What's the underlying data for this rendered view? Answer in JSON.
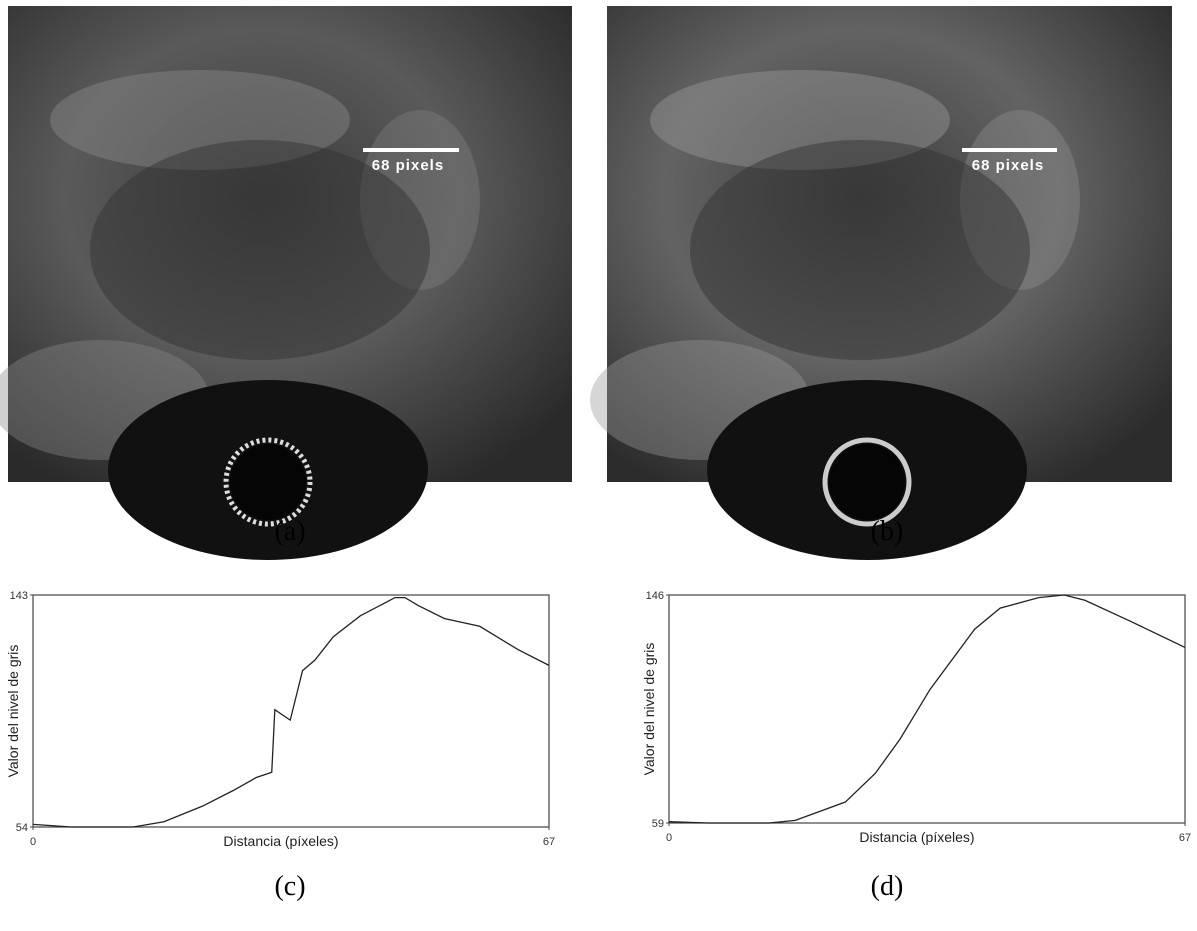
{
  "images": [
    {
      "scale_label": "68 pixels",
      "caption": "(a)"
    },
    {
      "scale_label": "68 pixels",
      "caption": "(b)"
    }
  ],
  "chart_data": [
    {
      "type": "line",
      "caption": "(c)",
      "xlabel": "Distancia (píxeles)",
      "ylabel": "Valor del nivel de gris",
      "x": [
        0,
        5,
        13,
        17,
        22,
        26,
        29,
        31,
        31.4,
        33.4,
        35,
        36.6,
        39,
        42.5,
        47,
        48.3,
        50,
        53.4,
        58,
        63,
        67
      ],
      "values": [
        55,
        54,
        54,
        56,
        62,
        68,
        73,
        75,
        99,
        95,
        114,
        118,
        127,
        135,
        142,
        142,
        139,
        134,
        131,
        122,
        116
      ],
      "color": "#222222",
      "xlim": [
        0,
        67
      ],
      "ylim": [
        54,
        143
      ],
      "xticks": [
        0,
        67
      ],
      "yticks": [
        54,
        143
      ]
    },
    {
      "type": "line",
      "caption": "(d)",
      "xlabel": "Distancia (píxeles)",
      "ylabel": "Valor del nivel de gris",
      "x": [
        0,
        5,
        13,
        16.4,
        22.9,
        26.8,
        30,
        33.9,
        39.7,
        43,
        48,
        51.3,
        54,
        59.9,
        67
      ],
      "values": [
        59.5,
        59,
        59,
        60,
        67,
        78,
        91,
        110,
        133,
        141,
        145,
        146,
        144,
        136,
        126
      ],
      "color": "#222222",
      "xlim": [
        0,
        67
      ],
      "ylim": [
        59,
        146
      ],
      "xticks": [
        0,
        67
      ],
      "yticks": [
        59,
        146
      ]
    }
  ]
}
